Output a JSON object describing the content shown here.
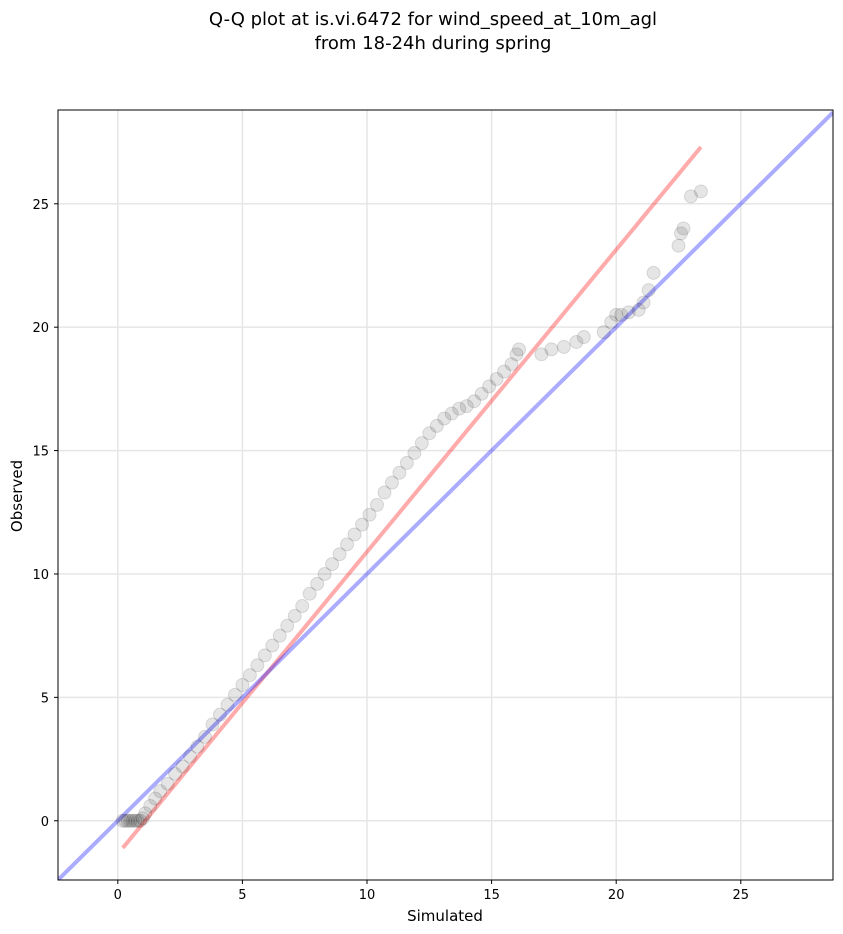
{
  "chart_data": {
    "type": "scatter",
    "title_line1": "Q-Q plot at is.vi.6472 for wind_speed_at_10m_agl",
    "title_line2": "from 18-24h during spring",
    "xlabel": "Simulated",
    "ylabel": "Observed",
    "xlim": [
      -2.4,
      28.7
    ],
    "ylim": [
      -2.4,
      28.8
    ],
    "xticks": [
      0,
      5,
      10,
      15,
      20,
      25
    ],
    "yticks": [
      0,
      5,
      10,
      15,
      20,
      25
    ],
    "grid": true,
    "legend": "none",
    "colors": {
      "points": "#000000",
      "identity_line": "#0000ff",
      "fit_line": "#ff0000"
    },
    "points": {
      "x": [
        0.2,
        0.3,
        0.4,
        0.5,
        0.6,
        0.7,
        0.8,
        0.9,
        1.0,
        1.1,
        1.3,
        1.5,
        1.7,
        2.0,
        2.3,
        2.6,
        2.9,
        3.2,
        3.5,
        3.8,
        4.1,
        4.4,
        4.7,
        5.0,
        5.3,
        5.6,
        5.9,
        6.2,
        6.5,
        6.8,
        7.1,
        7.4,
        7.7,
        8.0,
        8.3,
        8.6,
        8.9,
        9.2,
        9.5,
        9.8,
        10.1,
        10.4,
        10.7,
        11.0,
        11.3,
        11.6,
        11.9,
        12.2,
        12.5,
        12.8,
        13.1,
        13.4,
        13.7,
        14.0,
        14.3,
        14.6,
        14.9,
        15.2,
        15.5,
        15.8,
        16.0,
        16.1,
        17.0,
        17.4,
        17.9,
        18.4,
        18.7,
        19.5,
        19.8,
        20.0,
        20.2,
        20.5,
        20.9,
        21.1,
        21.3,
        21.5,
        22.5,
        22.6,
        22.7,
        23.0,
        23.4
      ],
      "y": [
        0.0,
        0.0,
        0.0,
        0.0,
        0.0,
        0.0,
        0.0,
        0.0,
        0.1,
        0.3,
        0.6,
        0.9,
        1.2,
        1.5,
        1.9,
        2.2,
        2.6,
        3.0,
        3.4,
        3.9,
        4.3,
        4.7,
        5.1,
        5.5,
        5.9,
        6.3,
        6.7,
        7.1,
        7.5,
        7.9,
        8.3,
        8.7,
        9.2,
        9.6,
        10.0,
        10.4,
        10.8,
        11.2,
        11.6,
        12.0,
        12.4,
        12.8,
        13.3,
        13.7,
        14.1,
        14.5,
        14.9,
        15.3,
        15.7,
        16.0,
        16.3,
        16.5,
        16.7,
        16.8,
        17.0,
        17.3,
        17.6,
        17.9,
        18.2,
        18.5,
        18.9,
        19.1,
        18.9,
        19.1,
        19.2,
        19.4,
        19.6,
        19.8,
        20.2,
        20.5,
        20.5,
        20.6,
        20.7,
        21.0,
        21.5,
        22.2,
        23.3,
        23.8,
        24.0,
        25.3,
        25.5
      ]
    },
    "identity_line": {
      "x": [
        -2.4,
        28.7
      ],
      "y": [
        -2.4,
        28.7
      ]
    },
    "fit_line": {
      "x": [
        0.2,
        23.4
      ],
      "y": [
        -1.1,
        27.3
      ]
    }
  }
}
